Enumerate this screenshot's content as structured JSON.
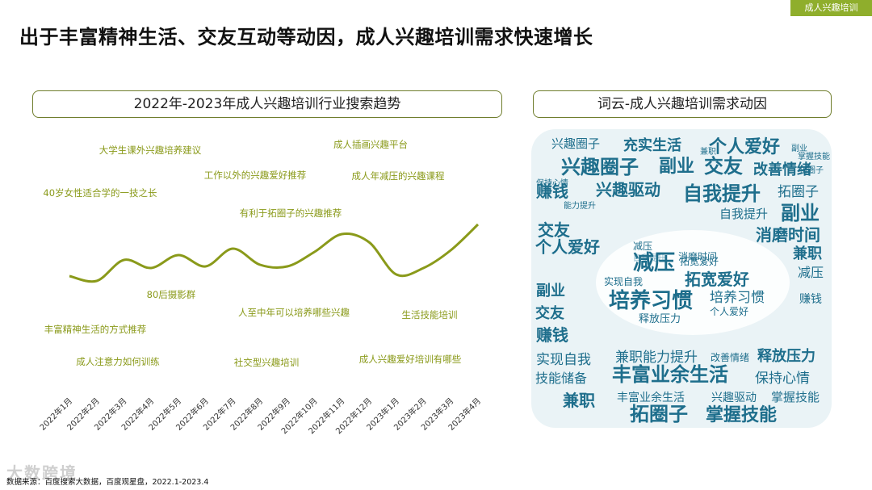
{
  "tag": "成人兴趣培训",
  "title": "出于丰富精神生活、交友互动等动因，成人兴趣培训需求快速增长",
  "chart_box_title": "2022年-2023年成人兴趣培训行业搜索趋势",
  "cloud_box_title": "词云-成人兴趣培训需求动因",
  "chart_data": {
    "type": "line",
    "categories": [
      "2022年1月",
      "2022年2月",
      "2022年3月",
      "2022年4月",
      "2022年5月",
      "2022年6月",
      "2022年7月",
      "2022年8月",
      "2022年9月",
      "2022年10月",
      "2022年11月",
      "2022年12月",
      "2023年1月",
      "2023年2月",
      "2023年3月",
      "2023年4月"
    ],
    "series": [
      {
        "values": [
          36,
          30,
          56,
          46,
          62,
          48,
          70,
          50,
          48,
          66,
          88,
          78,
          38,
          46,
          68,
          100
        ]
      }
    ],
    "ylim": [
      0,
      110
    ],
    "line_color": "#8a9a1a",
    "annotations": [
      "大学生课外兴趣培养建议",
      "40岁女性适合学的一技之长",
      "工作以外的兴趣爱好推荐",
      "成人插画兴趣平台",
      "成人年减压的兴趣课程",
      "有利于拓圈子的兴趣推荐",
      "80后摄影群",
      "人至中年可以培养哪些兴趣",
      "生活技能培训",
      "丰富精神生活的方式推荐",
      "成人注意力如何训练",
      "社交型兴趣培训",
      "成人兴趣爱好培训有哪些"
    ]
  },
  "word_cloud": {
    "color_dark": "#1e6e8c",
    "color_light": "#7fb3c7",
    "words": [
      "兴趣圈子",
      "充实生活",
      "个人爱好",
      "副业",
      "兼职",
      "兴趣圈子",
      "副业",
      "交友",
      "改善情绪",
      "拓圈子",
      "掌握技能",
      "赚钱",
      "兴趣驱动",
      "自我提升",
      "拓圈子",
      "保持心情",
      "能力提升",
      "自我提升",
      "副业",
      "交友",
      "消磨时间",
      "减压",
      "个人爱好",
      "消磨时间",
      "兼职",
      "自我提升",
      "减压",
      "减压",
      "拓宽爱好",
      "拓宽爱好",
      "实现自我",
      "培养习惯",
      "培养习惯",
      "个人爱好",
      "副业",
      "赚钱",
      "交友",
      "释放压力",
      "赚钱",
      "兼职能力提升",
      "改善情绪",
      "释放压力",
      "实现自我",
      "技能储备",
      "丰富业余生活",
      "保持心情",
      "兼职",
      "丰富业余生活",
      "兴趣驱动",
      "掌握技能",
      "拓圈子",
      "掌握技能"
    ]
  },
  "watermark": "大数跨境",
  "source": "数据来源：百度搜索大数据，百度观星盘，2022.1-2023.4"
}
